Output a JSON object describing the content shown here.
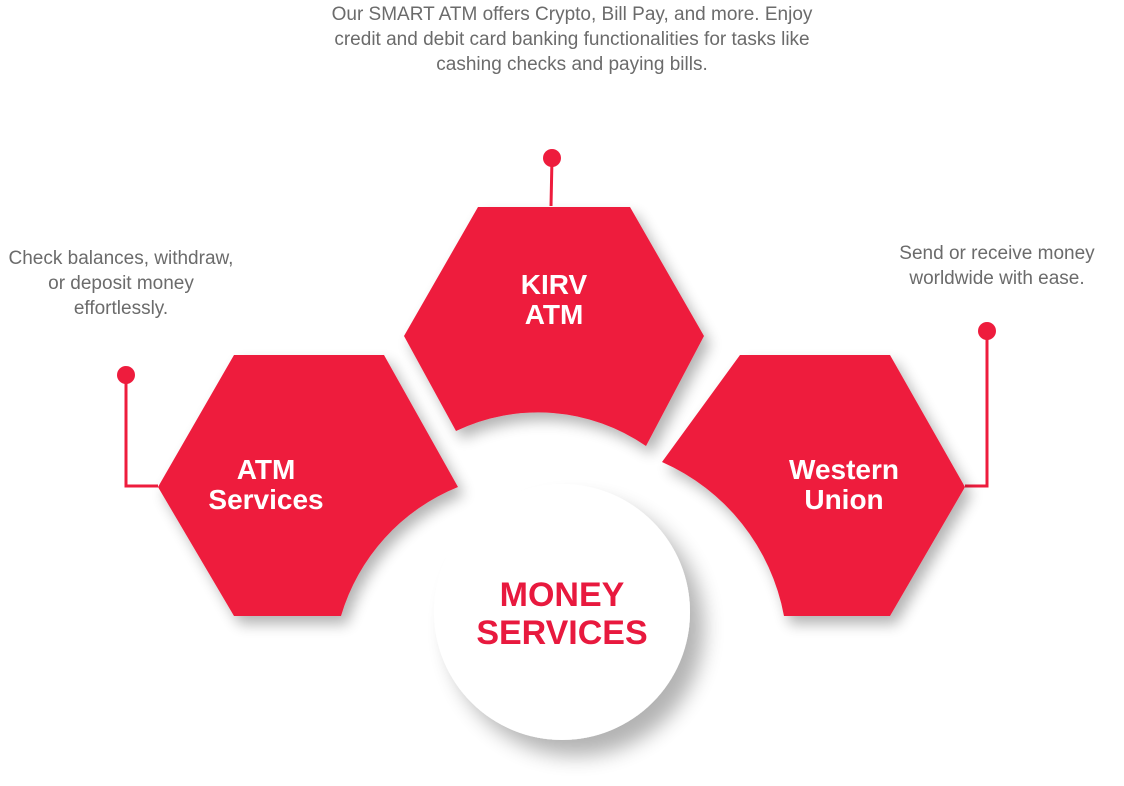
{
  "colors": {
    "accent": "#ee1c3d",
    "text_grey": "#6b6b6b",
    "center_text": "#e8193e",
    "circle_fill": "#ffffff"
  },
  "center": {
    "line1": "MONEY",
    "line2": "SERVICES"
  },
  "nodes": {
    "top": {
      "line1": "KIRV",
      "line2": "ATM",
      "description": "Our SMART ATM offers Crypto, Bill Pay, and more. Enjoy credit and debit card banking functionalities for tasks like cashing checks and paying bills."
    },
    "left": {
      "line1": "ATM",
      "line2": "Services",
      "description": "Check balances, withdraw, or deposit money effortlessly."
    },
    "right": {
      "line1": "Western",
      "line2": "Union",
      "description": "Send or receive money worldwide with ease."
    }
  }
}
